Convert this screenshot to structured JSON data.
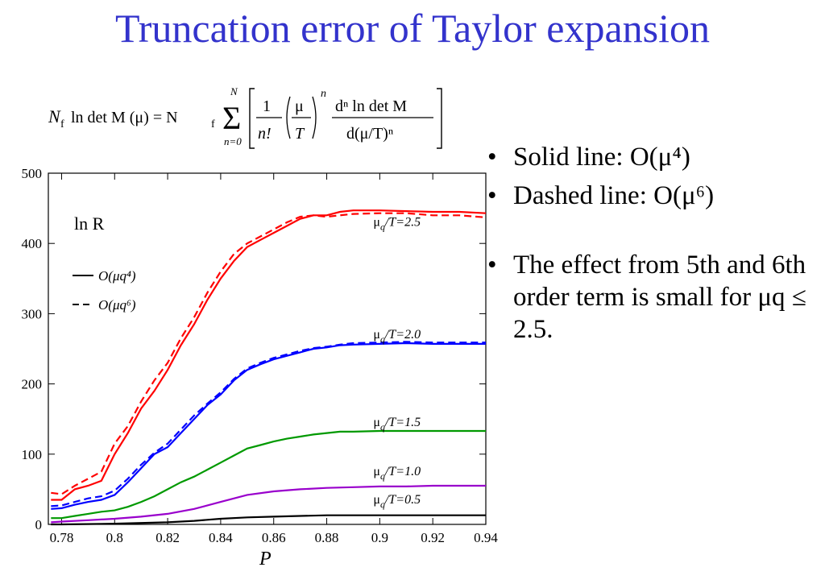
{
  "title": "Truncation error of Taylor expansion",
  "formula": {
    "lhs": "N",
    "lhs_sub": "f",
    "lhs_text": "ln det M (μ) = N",
    "sum_top": "N",
    "sum_bottom": "n=0",
    "frac1_num": "1",
    "frac1_den": "n!",
    "frac2_num": "μ",
    "frac2_den": "T",
    "power": "n",
    "deriv_num": "dⁿ ln det M",
    "deriv_den": "d(μ/T)ⁿ"
  },
  "bullets": [
    {
      "text": "Solid line: O(μ⁴)"
    },
    {
      "text": "Dashed line: O(μ⁶)"
    },
    {
      "text": "The effect from 5th and 6th order term is small for μq ≤ 2.5."
    }
  ],
  "chart_data": {
    "type": "line",
    "xlabel": "P",
    "ylabel": "ln R",
    "xlim": [
      0.775,
      0.94
    ],
    "ylim": [
      0,
      500
    ],
    "xticks": [
      0.78,
      0.8,
      0.82,
      0.84,
      0.86,
      0.88,
      0.9,
      0.92,
      0.94
    ],
    "yticks": [
      0,
      100,
      200,
      300,
      400,
      500
    ],
    "legend": {
      "placement": "top-left",
      "entries": [
        {
          "label": "O(μq⁴)",
          "style": "solid"
        },
        {
          "label": "O(μq⁶)",
          "style": "dashed"
        }
      ]
    },
    "series": [
      {
        "name": "μq/T=2.5",
        "color": "#ff0000",
        "x": [
          0.776,
          0.78,
          0.785,
          0.79,
          0.795,
          0.8,
          0.805,
          0.81,
          0.815,
          0.82,
          0.825,
          0.83,
          0.835,
          0.84,
          0.845,
          0.85,
          0.855,
          0.86,
          0.865,
          0.87,
          0.875,
          0.88,
          0.885,
          0.89,
          0.9,
          0.91,
          0.92,
          0.93,
          0.94
        ],
        "solid": [
          35,
          35,
          50,
          55,
          62,
          100,
          130,
          165,
          190,
          220,
          255,
          285,
          320,
          350,
          375,
          395,
          405,
          415,
          425,
          435,
          440,
          440,
          445,
          447,
          447,
          446,
          445,
          445,
          443
        ],
        "dashed": [
          45,
          43,
          55,
          65,
          75,
          115,
          140,
          175,
          205,
          230,
          265,
          295,
          330,
          360,
          385,
          400,
          410,
          420,
          430,
          438,
          440,
          438,
          440,
          442,
          443,
          443,
          440,
          440,
          437
        ]
      },
      {
        "name": "μq/T=2.0",
        "color": "#0000ff",
        "x": [
          0.776,
          0.78,
          0.785,
          0.79,
          0.795,
          0.8,
          0.805,
          0.81,
          0.815,
          0.82,
          0.825,
          0.83,
          0.835,
          0.84,
          0.845,
          0.85,
          0.855,
          0.86,
          0.865,
          0.87,
          0.875,
          0.88,
          0.885,
          0.89,
          0.9,
          0.91,
          0.92,
          0.93,
          0.94
        ],
        "solid": [
          22,
          23,
          28,
          32,
          35,
          42,
          60,
          80,
          100,
          110,
          130,
          150,
          170,
          185,
          205,
          220,
          228,
          235,
          240,
          245,
          250,
          252,
          255,
          256,
          257,
          258,
          257,
          257,
          257
        ],
        "dashed": [
          26,
          27,
          32,
          37,
          40,
          48,
          65,
          85,
          102,
          115,
          135,
          155,
          172,
          188,
          207,
          222,
          230,
          237,
          242,
          247,
          251,
          253,
          256,
          258,
          259,
          260,
          259,
          259,
          259
        ]
      },
      {
        "name": "μq/T=1.5",
        "color": "#009900",
        "x": [
          0.776,
          0.78,
          0.785,
          0.79,
          0.795,
          0.8,
          0.805,
          0.81,
          0.815,
          0.82,
          0.825,
          0.83,
          0.835,
          0.84,
          0.845,
          0.85,
          0.855,
          0.86,
          0.865,
          0.87,
          0.875,
          0.88,
          0.885,
          0.89,
          0.9,
          0.91,
          0.92,
          0.93,
          0.94
        ],
        "solid": [
          9,
          9,
          12,
          15,
          18,
          20,
          25,
          32,
          40,
          50,
          60,
          68,
          78,
          88,
          98,
          108,
          113,
          118,
          122,
          125,
          128,
          130,
          132,
          132,
          133,
          133,
          133,
          133,
          133
        ]
      },
      {
        "name": "μq/T=1.0",
        "color": "#9900cc",
        "x": [
          0.776,
          0.78,
          0.79,
          0.8,
          0.81,
          0.82,
          0.83,
          0.84,
          0.85,
          0.86,
          0.87,
          0.88,
          0.89,
          0.9,
          0.91,
          0.92,
          0.93,
          0.94
        ],
        "solid": [
          3,
          4,
          6,
          8,
          11,
          15,
          22,
          32,
          42,
          47,
          50,
          52,
          53,
          54,
          54,
          55,
          55,
          55
        ]
      },
      {
        "name": "μq/T=0.5",
        "color": "#000000",
        "x": [
          0.776,
          0.78,
          0.8,
          0.82,
          0.83,
          0.84,
          0.85,
          0.86,
          0.87,
          0.88,
          0.89,
          0.9,
          0.92,
          0.94
        ],
        "solid": [
          0,
          0,
          1,
          3,
          5,
          8,
          10,
          11,
          12,
          13,
          13,
          13,
          13,
          13
        ]
      }
    ],
    "curve_labels": [
      {
        "mu": "μ",
        "sub": "q",
        "rest": "/T=2.5",
        "x": 0.9,
        "y": 425
      },
      {
        "mu": "μ",
        "sub": "q",
        "rest": "/T=2.0",
        "x": 0.9,
        "y": 265
      },
      {
        "mu": "μ",
        "sub": "q",
        "rest": "/T=1.5",
        "x": 0.9,
        "y": 140
      },
      {
        "mu": "μ",
        "sub": "q",
        "rest": "/T=1.0",
        "x": 0.9,
        "y": 70
      },
      {
        "mu": "μ",
        "sub": "q",
        "rest": "/T=0.5",
        "x": 0.9,
        "y": 30
      }
    ]
  }
}
